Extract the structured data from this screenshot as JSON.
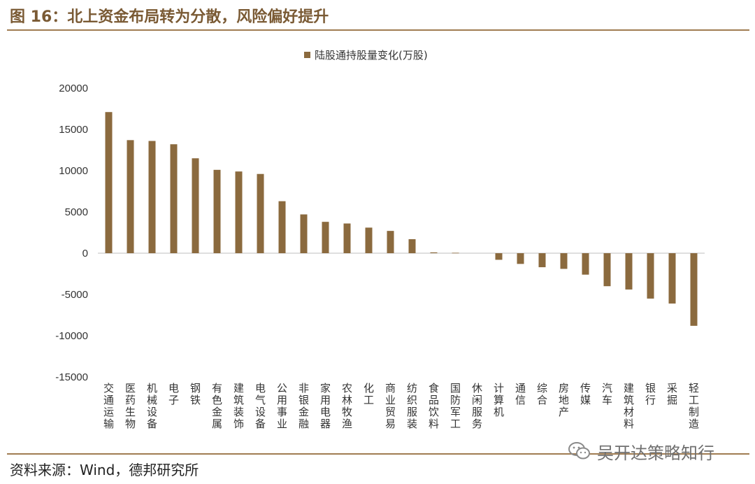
{
  "header": {
    "title": "图 16：北上资金布局转为分散，风险偏好提升"
  },
  "footer": {
    "source": "资料来源：Wind，德邦研究所"
  },
  "watermark": {
    "text": "吴开达策略知行",
    "icon": "wechat-icon"
  },
  "colors": {
    "bar": "#8b6a3e",
    "accent": "#a07c52",
    "title": "#7a5a34"
  },
  "chart_data": {
    "type": "bar",
    "series": [
      {
        "name": "陆股通持股量变化(万股)",
        "color": "#8b6a3e"
      }
    ],
    "categories": [
      "交通运输",
      "医药生物",
      "机械设备",
      "电子",
      "钢铁",
      "有色金属",
      "建筑装饰",
      "电气设备",
      "公用事业",
      "非银金融",
      "家用电器",
      "农林牧渔",
      "化工",
      "商业贸易",
      "纺织服装",
      "食品饮料",
      "国防军工",
      "休闲服务",
      "计算机",
      "通信",
      "综合",
      "房地产",
      "传媒",
      "汽车",
      "建筑材料",
      "银行",
      "采掘",
      "轻工制造"
    ],
    "values": [
      17100,
      13700,
      13600,
      13200,
      11500,
      10100,
      9900,
      9600,
      6300,
      4700,
      3800,
      3600,
      3100,
      2700,
      1700,
      100,
      50,
      0,
      -800,
      -1300,
      -1700,
      -1900,
      -2600,
      -4000,
      -4400,
      -5500,
      -6100,
      -8800
    ],
    "yticks": [
      20000,
      15000,
      10000,
      5000,
      0,
      -5000,
      -10000,
      -15000
    ],
    "ylim": [
      -15000,
      20000
    ],
    "legend_position": "top-center",
    "grid": false
  }
}
